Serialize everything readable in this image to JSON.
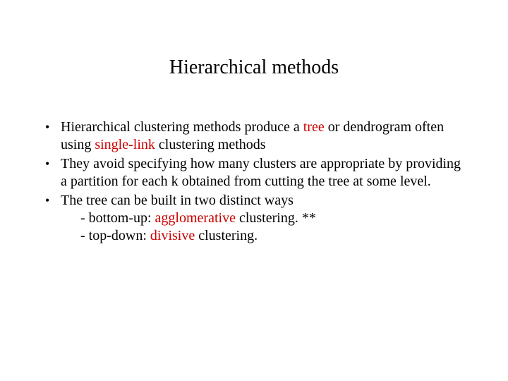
{
  "colors": {
    "background": "#ffffff",
    "text": "#000000",
    "accent": "#cc0000"
  },
  "typography": {
    "family": "Times New Roman",
    "title_size_pt": 28,
    "body_size_pt": 20,
    "line_height": 1.25
  },
  "title": "Hierarchical methods",
  "bullets": [
    {
      "pre1": "Hierarchical clustering methods produce a ",
      "red1": "tree",
      "mid1": " or dendrogram often using ",
      "red2": "single-link",
      "post1": " clustering methods"
    },
    {
      "text": "They avoid specifying how many clusters are appropriate by providing a partition for each k obtained from cutting the tree at some level."
    },
    {
      "lead": "The tree can be built in two distinct ways",
      "sub1_pre": " - bottom-up: ",
      "sub1_red": "agglomerative",
      "sub1_post": " clustering. **",
      "sub2_pre": " - top-down: ",
      "sub2_red": "divisive",
      "sub2_post": " clustering."
    }
  ]
}
